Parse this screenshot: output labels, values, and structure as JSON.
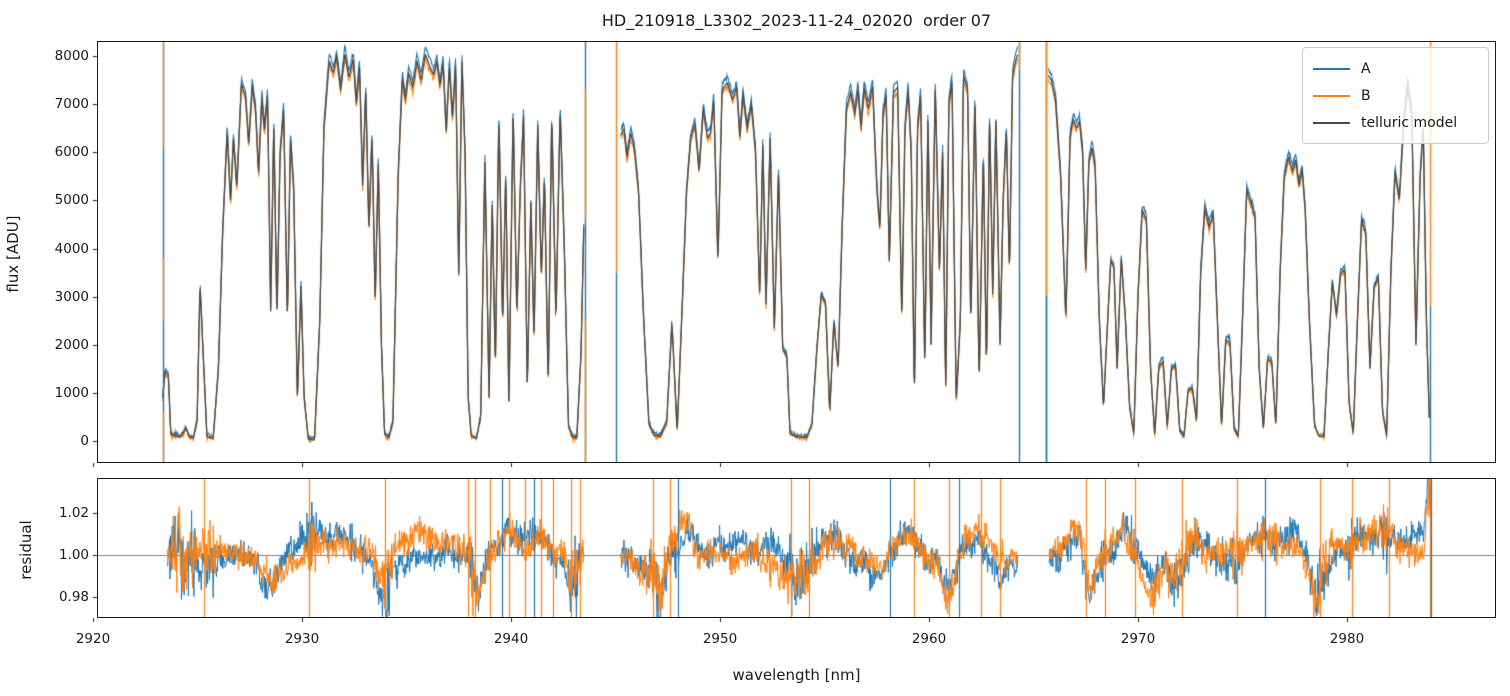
{
  "colors": {
    "series_a": "#1f77b4",
    "series_b": "#ff7f0e",
    "telluric_model": "#4a4a4a",
    "residual_hline": "#808080",
    "spine": "#1a1a1a",
    "text": "#1a1a1a"
  },
  "chart_data": {
    "type": "line",
    "title": "HD_210918_L3302_2023-11-24_02020  order 07",
    "xlabel": "wavelength [nm]",
    "ylabel_top": "flux [ADU]",
    "ylabel_bottom": "residual",
    "xlim": [
      2920.19,
      2987.13
    ],
    "ylim_flux": [
      -460,
      8315
    ],
    "ylim_residual": [
      0.97,
      1.0367
    ],
    "xticks": [
      2920,
      2930,
      2940,
      2950,
      2960,
      2970,
      2980
    ],
    "yticks_flux": [
      0,
      1000,
      2000,
      3000,
      4000,
      5000,
      6000,
      7000,
      8000
    ],
    "yticks_residual": [
      {
        "v": 0.98,
        "label": "0.98"
      },
      {
        "v": 1.0,
        "label": "1.00"
      },
      {
        "v": 1.02,
        "label": "1.02"
      }
    ],
    "grid": false,
    "legend": {
      "position": "upper right",
      "entries": [
        {
          "key": "A",
          "label": "A",
          "color": "#1f77b4"
        },
        {
          "key": "B",
          "label": "B",
          "color": "#ff7f0e"
        },
        {
          "key": "model",
          "label": "telluric model",
          "color": "#4a4a4a"
        }
      ]
    },
    "series_style": {
      "A": {
        "scale": 1.015,
        "offset": 25,
        "jitter": 22,
        "seed": 5
      },
      "B": {
        "scale": 0.988,
        "offset": -8,
        "jitter": 22,
        "seed": 13
      }
    },
    "segments": [
      {
        "model_points": [
          2923.33,
          900,
          2923.45,
          1450,
          2923.6,
          1380,
          2923.72,
          150,
          2923.95,
          100,
          2924.2,
          90,
          2924.45,
          260,
          2924.6,
          90,
          2924.8,
          60,
          2924.98,
          420,
          2925.12,
          3250,
          2925.3,
          1500,
          2925.45,
          80,
          2925.75,
          60,
          2926.0,
          1500,
          2926.2,
          4300,
          2926.42,
          6450,
          2926.58,
          4950,
          2926.72,
          6300,
          2926.88,
          5250,
          2927.1,
          7430,
          2927.3,
          7150,
          2927.45,
          6150,
          2927.62,
          7400,
          2927.78,
          6850,
          2927.92,
          5550,
          2928.08,
          7150,
          2928.2,
          6450,
          2928.35,
          7200,
          2928.5,
          2700,
          2928.65,
          6600,
          2928.8,
          2550,
          2928.95,
          5950,
          2929.12,
          6900,
          2929.3,
          2500,
          2929.45,
          6300,
          2929.6,
          5250,
          2929.78,
          850,
          2929.95,
          3250,
          2930.1,
          900,
          2930.3,
          30,
          2930.6,
          20,
          2930.85,
          2500,
          2931.05,
          6500,
          2931.3,
          7900,
          2931.5,
          7650,
          2931.65,
          8000,
          2931.85,
          7300,
          2932.05,
          8050,
          2932.25,
          7550,
          2932.45,
          7950,
          2932.6,
          7000,
          2932.75,
          7800,
          2932.9,
          5300,
          2933.05,
          7300,
          2933.2,
          4350,
          2933.35,
          6400,
          2933.5,
          2850,
          2933.65,
          5800,
          2933.8,
          2000,
          2933.95,
          150,
          2934.15,
          60,
          2934.35,
          400,
          2934.6,
          5500,
          2934.8,
          7550,
          2934.95,
          7100,
          2935.1,
          7650,
          2935.3,
          7350,
          2935.5,
          7900,
          2935.7,
          7500,
          2935.9,
          8050,
          2936.1,
          7800,
          2936.3,
          7600,
          2936.45,
          7900,
          2936.6,
          7400,
          2936.75,
          7850,
          2936.9,
          6400,
          2937.05,
          7800,
          2937.2,
          6700,
          2937.35,
          7850,
          2937.5,
          3400,
          2937.65,
          7900,
          2937.8,
          6000,
          2937.95,
          900,
          2938.1,
          100,
          2938.35,
          60,
          2938.55,
          500,
          2938.75,
          5850,
          2938.95,
          900,
          2939.1,
          5000,
          2939.25,
          1500,
          2939.42,
          6800,
          2939.6,
          2400,
          2939.75,
          5600,
          2939.9,
          700,
          2940.1,
          6900,
          2940.28,
          2600,
          2940.45,
          5300,
          2940.6,
          6750,
          2940.78,
          1100,
          2940.95,
          5000,
          2941.1,
          2100,
          2941.28,
          6600,
          2941.45,
          3400,
          2941.6,
          5500,
          2941.78,
          1100,
          2941.95,
          6800,
          2942.15,
          2500,
          2942.35,
          6900,
          2942.55,
          4000,
          2942.75,
          300,
          2942.95,
          80,
          2943.15,
          60,
          2943.35,
          1800,
          2943.5,
          4800
        ]
      },
      {
        "model_points": [
          2945.25,
          6350,
          2945.4,
          6500,
          2945.55,
          5900,
          2945.72,
          6400,
          2945.9,
          6100,
          2946.1,
          5200,
          2946.35,
          2500,
          2946.6,
          350,
          2946.85,
          120,
          2947.15,
          90,
          2947.45,
          400,
          2947.7,
          2450,
          2947.95,
          200,
          2948.2,
          2900,
          2948.4,
          5200,
          2948.6,
          6300,
          2948.8,
          6600,
          2949.0,
          5600,
          2949.2,
          6900,
          2949.4,
          6300,
          2949.55,
          6400,
          2949.7,
          7100,
          2949.9,
          3700,
          2950.1,
          7300,
          2950.35,
          7450,
          2950.6,
          7100,
          2950.8,
          7350,
          2950.95,
          6300,
          2951.1,
          7200,
          2951.3,
          6500,
          2951.5,
          7000,
          2951.7,
          6000,
          2951.9,
          3000,
          2952.05,
          6200,
          2952.2,
          2800,
          2952.4,
          6300,
          2952.6,
          2300,
          2952.8,
          5600,
          2953.0,
          1900,
          2953.2,
          1750,
          2953.35,
          150,
          2953.6,
          90,
          2953.9,
          80,
          2954.15,
          70,
          2954.4,
          350,
          2954.65,
          2000,
          2954.85,
          3050,
          2955.05,
          2850,
          2955.25,
          600,
          2955.45,
          2500,
          2955.65,
          1500,
          2955.85,
          4500,
          2956.05,
          6900,
          2956.25,
          7250,
          2956.45,
          6800,
          2956.6,
          7300,
          2956.75,
          6500,
          2956.9,
          7350,
          2957.1,
          6900,
          2957.3,
          7400,
          2957.5,
          5300,
          2957.65,
          4400,
          2957.8,
          6800,
          2957.95,
          7200,
          2958.1,
          3700,
          2958.3,
          7250,
          2958.5,
          7350,
          2958.7,
          2500,
          2958.85,
          6500,
          2959.0,
          7300,
          2959.15,
          6000,
          2959.3,
          900,
          2959.45,
          6500,
          2959.6,
          7200,
          2959.8,
          1500,
          2959.95,
          6800,
          2960.1,
          2000,
          2960.3,
          7350,
          2960.5,
          3500,
          2960.65,
          6000,
          2960.8,
          1000,
          2960.95,
          7000,
          2961.1,
          7500,
          2961.3,
          800,
          2961.5,
          2500,
          2961.65,
          7600,
          2961.85,
          7300,
          2962.0,
          2400,
          2962.2,
          7200,
          2962.4,
          1200,
          2962.6,
          6000,
          2962.75,
          1500,
          2962.9,
          6800,
          2963.05,
          3000,
          2963.2,
          6700,
          2963.4,
          2000,
          2963.55,
          5000,
          2963.7,
          6500,
          2963.85,
          3500,
          2964.0,
          7600,
          2964.15,
          7900,
          2964.25,
          8050
        ]
      },
      {
        "model_points": [
          2965.7,
          7600,
          2965.85,
          7500,
          2966.05,
          7100,
          2966.3,
          5500,
          2966.55,
          2500,
          2966.75,
          6300,
          2966.9,
          6700,
          2967.05,
          6500,
          2967.2,
          6650,
          2967.35,
          6000,
          2967.5,
          3500,
          2967.65,
          5800,
          2967.8,
          6100,
          2967.95,
          5700,
          2968.15,
          2500,
          2968.35,
          700,
          2968.55,
          2500,
          2968.7,
          3750,
          2968.85,
          3600,
          2969.0,
          1500,
          2969.2,
          3800,
          2969.4,
          2500,
          2969.6,
          700,
          2969.8,
          150,
          2970.0,
          3000,
          2970.2,
          4800,
          2970.4,
          4600,
          2970.6,
          1500,
          2970.8,
          120,
          2971.0,
          1550,
          2971.2,
          1650,
          2971.4,
          300,
          2971.6,
          1500,
          2971.8,
          1550,
          2972.0,
          200,
          2972.2,
          90,
          2972.4,
          1050,
          2972.6,
          1100,
          2972.8,
          400,
          2973.0,
          3500,
          2973.2,
          4850,
          2973.4,
          4450,
          2973.6,
          4700,
          2973.8,
          2500,
          2974.0,
          300,
          2974.2,
          2100,
          2974.4,
          2050,
          2974.6,
          250,
          2974.8,
          90,
          2975.0,
          2500,
          2975.2,
          5200,
          2975.45,
          4900,
          2975.6,
          4650,
          2975.8,
          1500,
          2976.0,
          250,
          2976.2,
          1700,
          2976.4,
          1650,
          2976.6,
          300,
          2976.8,
          3500,
          2977.0,
          5500,
          2977.2,
          5900,
          2977.4,
          5600,
          2977.55,
          5850,
          2977.7,
          5300,
          2977.85,
          5650,
          2978.0,
          4800,
          2978.2,
          2500,
          2978.45,
          300,
          2978.65,
          100,
          2978.9,
          90,
          2979.1,
          1800,
          2979.3,
          3300,
          2979.5,
          2600,
          2979.7,
          3500,
          2979.9,
          3550,
          2980.1,
          800,
          2980.3,
          150,
          2980.5,
          2500,
          2980.7,
          4600,
          2980.9,
          4300,
          2981.1,
          1500,
          2981.3,
          3200,
          2981.5,
          3400,
          2981.7,
          600,
          2981.9,
          100,
          2982.1,
          3500,
          2982.3,
          5600,
          2982.5,
          5000,
          2982.7,
          6500,
          2982.9,
          7400,
          2983.1,
          6800,
          2983.3,
          2000,
          2983.5,
          5500,
          2983.65,
          6500,
          2983.8,
          2500,
          2983.95,
          300
        ]
      }
    ],
    "edge_spikes": [
      {
        "x": 2923.33,
        "parts": [
          [
            "A",
            8315,
            -460
          ],
          [
            "B",
            8315,
            6100
          ],
          [
            "B",
            3800,
            2500
          ],
          [
            "B",
            600,
            -460
          ]
        ]
      },
      {
        "x": 2943.55,
        "parts": [
          [
            "A",
            8315,
            -460
          ],
          [
            "B",
            7300,
            4600
          ],
          [
            "B",
            2500,
            -460
          ]
        ]
      },
      {
        "x": 2945.03,
        "parts": [
          [
            "B",
            8315,
            3500
          ],
          [
            "A",
            3500,
            -460
          ]
        ]
      },
      {
        "x": 2964.3,
        "parts": [
          [
            "A",
            8315,
            -460
          ],
          [
            "B",
            8315,
            7700
          ]
        ]
      },
      {
        "x": 2965.62,
        "parts": [
          [
            "model",
            8315,
            -460
          ],
          [
            "B",
            8315,
            3000
          ],
          [
            "A",
            3000,
            -460
          ]
        ]
      },
      {
        "x": 2983.98,
        "parts": [
          [
            "B",
            8315,
            2800
          ],
          [
            "A",
            2800,
            -460
          ]
        ]
      }
    ],
    "residual": {
      "hline": 1.0,
      "segments": [
        [
          2923.55,
          2943.5
        ],
        [
          2945.25,
          2964.25
        ],
        [
          2965.75,
          2983.98
        ]
      ],
      "noise_sigma_base": 0.0033,
      "noise_sigma_lowflux": 0.005,
      "wander_gain": 0.0028,
      "seeds": {
        "A": 3,
        "B": 9
      },
      "bumps": [
        [
          2924.1,
          0.05,
          0.016
        ],
        [
          2924.5,
          0.5,
          -0.004
        ],
        [
          2928.6,
          0.5,
          -0.011
        ],
        [
          2930.6,
          0.4,
          0.009
        ],
        [
          2931.8,
          0.5,
          0.006
        ],
        [
          2933.9,
          0.25,
          -0.018
        ],
        [
          2936.5,
          0.8,
          0.004
        ],
        [
          2938.4,
          0.25,
          -0.022
        ],
        [
          2940.0,
          0.5,
          0.008
        ],
        [
          2941.3,
          0.4,
          0.01
        ],
        [
          2942.9,
          0.3,
          -0.018
        ],
        [
          2946.3,
          0.3,
          -0.008
        ],
        [
          2947.1,
          0.25,
          -0.02
        ],
        [
          2948.4,
          0.3,
          0.01
        ],
        [
          2950.8,
          0.8,
          0.005
        ],
        [
          2953.7,
          0.4,
          -0.012
        ],
        [
          2955.4,
          0.5,
          0.008
        ],
        [
          2957.5,
          0.3,
          -0.009
        ],
        [
          2958.9,
          0.4,
          0.012
        ],
        [
          2960.9,
          0.25,
          -0.018
        ],
        [
          2962.2,
          0.5,
          0.01
        ],
        [
          2963.3,
          0.4,
          -0.006
        ],
        [
          2967.0,
          0.3,
          0.012
        ],
        [
          2967.7,
          0.2,
          -0.02
        ],
        [
          2969.4,
          0.5,
          0.008
        ],
        [
          2970.6,
          0.35,
          -0.014
        ],
        [
          2971.8,
          0.4,
          -0.01
        ],
        [
          2972.7,
          0.3,
          0.008
        ],
        [
          2975.5,
          0.6,
          0.005
        ],
        [
          2977.1,
          0.5,
          0.007
        ],
        [
          2978.5,
          0.3,
          -0.022
        ],
        [
          2980.9,
          0.6,
          0.009
        ],
        [
          2981.9,
          0.4,
          0.011
        ],
        [
          2983.3,
          0.3,
          0.006
        ],
        [
          2983.9,
          0.1,
          0.03
        ]
      ],
      "spikes": [
        [
          2925.3,
          "B"
        ],
        [
          2930.35,
          "B"
        ],
        [
          2933.95,
          "B"
        ],
        [
          2937.95,
          "B"
        ],
        [
          2938.3,
          "B"
        ],
        [
          2939.0,
          "B"
        ],
        [
          2939.55,
          "A"
        ],
        [
          2939.9,
          "B"
        ],
        [
          2940.65,
          "B"
        ],
        [
          2941.1,
          "A"
        ],
        [
          2941.45,
          "B"
        ],
        [
          2942.0,
          "B"
        ],
        [
          2942.85,
          "B"
        ],
        [
          2943.3,
          "B"
        ],
        [
          2946.8,
          "B"
        ],
        [
          2947.6,
          "B"
        ],
        [
          2948.0,
          "A"
        ],
        [
          2953.4,
          "B"
        ],
        [
          2954.25,
          "B"
        ],
        [
          2958.15,
          "A"
        ],
        [
          2959.3,
          "B"
        ],
        [
          2960.95,
          "B"
        ],
        [
          2961.45,
          "A"
        ],
        [
          2962.5,
          "B"
        ],
        [
          2963.4,
          "B"
        ],
        [
          2967.5,
          "B"
        ],
        [
          2968.4,
          "B"
        ],
        [
          2969.85,
          "B"
        ],
        [
          2972.1,
          "B"
        ],
        [
          2974.75,
          "B"
        ],
        [
          2976.1,
          "A"
        ],
        [
          2978.7,
          "B"
        ],
        [
          2980.25,
          "B"
        ],
        [
          2982.0,
          "B"
        ],
        [
          2983.95,
          "B"
        ],
        [
          2984.0,
          "A"
        ]
      ]
    }
  }
}
